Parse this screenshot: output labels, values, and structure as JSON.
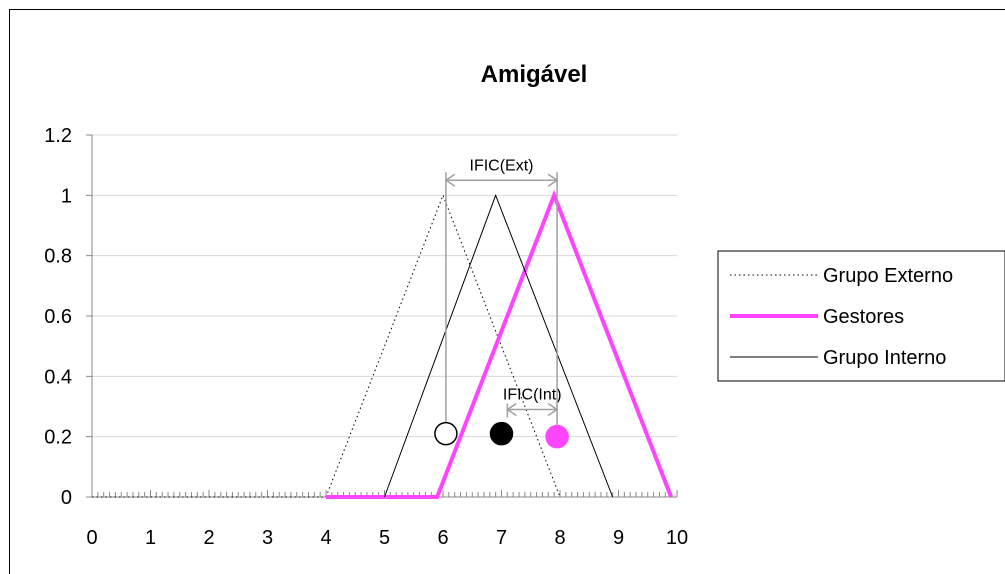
{
  "chart_data": {
    "type": "line",
    "title": "Amigável",
    "xlabel": "",
    "ylabel": "",
    "xlim": [
      0,
      10
    ],
    "ylim": [
      0,
      1.2
    ],
    "x_ticks": [
      "0",
      "1",
      "2",
      "3",
      "4",
      "5",
      "6",
      "7",
      "8",
      "9",
      "10"
    ],
    "y_ticks": [
      "0",
      "0.2",
      "0.4",
      "0.6",
      "0.8",
      "1",
      "1.2"
    ],
    "grid": "horizontal",
    "legend_position": "right",
    "series": [
      {
        "name": "Grupo Externo",
        "color": "#000000",
        "style": "dotted",
        "points": [
          [
            0,
            0
          ],
          [
            4,
            0
          ],
          [
            6,
            1
          ],
          [
            8,
            0
          ]
        ]
      },
      {
        "name": "Gestores",
        "color": "#ff44ff",
        "style": "thick",
        "points": [
          [
            4,
            0
          ],
          [
            5.9,
            0
          ],
          [
            7.9,
            1
          ],
          [
            9.9,
            0
          ]
        ]
      },
      {
        "name": "Grupo Interno",
        "color": "#000000",
        "style": "thin",
        "points": [
          [
            5,
            0
          ],
          [
            6.9,
            1
          ],
          [
            8.9,
            0
          ]
        ]
      }
    ],
    "markers": [
      {
        "x": 6.05,
        "y": 0.21,
        "fill": "#ffffff",
        "stroke": "#000000"
      },
      {
        "x": 7.0,
        "y": 0.21,
        "fill": "#000000",
        "stroke": "#000000"
      },
      {
        "x": 7.95,
        "y": 0.2,
        "fill": "#ff44ff",
        "stroke": "#ff44ff"
      }
    ],
    "annotations": [
      {
        "label": "IFIC(Ext)",
        "x1": 6.05,
        "x2": 7.95,
        "y": 1.05
      },
      {
        "label": "IFIC(Int)",
        "x1": 7.1,
        "x2": 7.95,
        "y": 0.29
      }
    ]
  }
}
